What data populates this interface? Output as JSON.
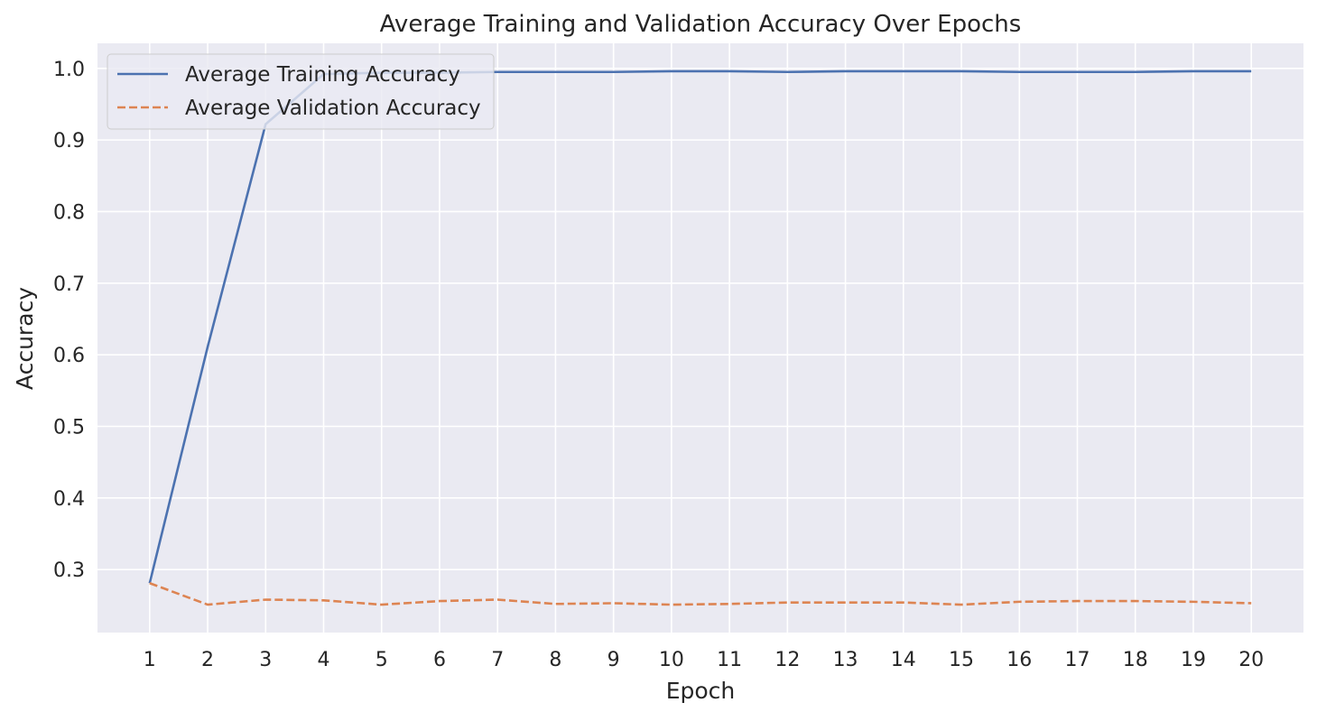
{
  "chart_data": {
    "type": "line",
    "title": "Average Training and Validation Accuracy Over Epochs",
    "xlabel": "Epoch",
    "ylabel": "Accuracy",
    "x": [
      1,
      2,
      3,
      4,
      5,
      6,
      7,
      8,
      9,
      10,
      11,
      12,
      13,
      14,
      15,
      16,
      17,
      18,
      19,
      20
    ],
    "xlim": [
      0.1,
      20.9
    ],
    "ylim": [
      0.212,
      1.035
    ],
    "xticks": [
      "1",
      "2",
      "3",
      "4",
      "5",
      "6",
      "7",
      "8",
      "9",
      "10",
      "11",
      "12",
      "13",
      "14",
      "15",
      "16",
      "17",
      "18",
      "19",
      "20"
    ],
    "yticks": [
      0.3,
      0.4,
      0.5,
      0.6,
      0.7,
      0.8,
      0.9,
      1.0
    ],
    "ytick_labels": [
      "0.3",
      "0.4",
      "0.5",
      "0.6",
      "0.7",
      "0.8",
      "0.9",
      "1.0"
    ],
    "grid": true,
    "legend_position": "top-left",
    "series": [
      {
        "name": "Average Training Accuracy",
        "style": "solid",
        "color": "#4c72b0",
        "values": [
          0.281,
          0.611,
          0.922,
          0.992,
          0.994,
          0.994,
          0.995,
          0.995,
          0.995,
          0.996,
          0.996,
          0.995,
          0.996,
          0.996,
          0.996,
          0.995,
          0.995,
          0.995,
          0.996,
          0.996
        ]
      },
      {
        "name": "Average Validation Accuracy",
        "style": "dashed",
        "color": "#dd8452",
        "values": [
          0.281,
          0.251,
          0.258,
          0.257,
          0.251,
          0.256,
          0.258,
          0.252,
          0.253,
          0.251,
          0.252,
          0.254,
          0.254,
          0.254,
          0.251,
          0.255,
          0.256,
          0.256,
          0.255,
          0.253
        ]
      }
    ],
    "colors": {
      "plot_background": "#eaeaf2",
      "grid": "#ffffff"
    }
  }
}
